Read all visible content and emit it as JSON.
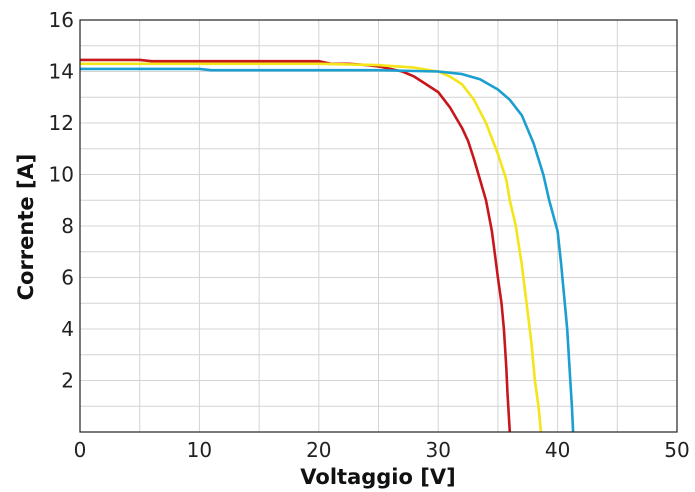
{
  "chart_data": {
    "type": "line",
    "title": "",
    "xlabel": "Voltaggio [V]",
    "ylabel": "Corrente [A]",
    "xlim": [
      0,
      50
    ],
    "ylim": [
      0,
      16
    ],
    "xticks": [
      0,
      10,
      20,
      30,
      40,
      50
    ],
    "yticks": [
      2,
      4,
      6,
      8,
      10,
      12,
      14,
      16
    ],
    "grid": true,
    "grid_minor": true,
    "legend": "none",
    "series": [
      {
        "color": "#c8161d",
        "points": [
          [
            0,
            14.45
          ],
          [
            5,
            14.45
          ],
          [
            6,
            14.4
          ],
          [
            15,
            14.4
          ],
          [
            20,
            14.4
          ],
          [
            21,
            14.3
          ],
          [
            22.5,
            14.3
          ],
          [
            24,
            14.25
          ],
          [
            25,
            14.2
          ],
          [
            26,
            14.1
          ],
          [
            27,
            14.0
          ],
          [
            28,
            13.8
          ],
          [
            29,
            13.5
          ],
          [
            30,
            13.2
          ],
          [
            31,
            12.6
          ],
          [
            32,
            11.8
          ],
          [
            32.5,
            11.3
          ],
          [
            33,
            10.6
          ],
          [
            33.5,
            9.8
          ],
          [
            34,
            9.0
          ],
          [
            34.5,
            7.8
          ],
          [
            35,
            6.0
          ],
          [
            35.3,
            5.0
          ],
          [
            35.5,
            4.0
          ],
          [
            35.7,
            2.5
          ],
          [
            35.8,
            1.5
          ],
          [
            36,
            0.0
          ]
        ]
      },
      {
        "color": "#f4e51a",
        "points": [
          [
            0,
            14.3
          ],
          [
            10,
            14.3
          ],
          [
            20,
            14.3
          ],
          [
            25,
            14.25
          ],
          [
            28,
            14.15
          ],
          [
            30,
            14.0
          ],
          [
            31,
            13.8
          ],
          [
            32,
            13.5
          ],
          [
            33,
            12.9
          ],
          [
            34,
            12.0
          ],
          [
            35,
            10.8
          ],
          [
            35.7,
            9.8
          ],
          [
            36,
            9.0
          ],
          [
            36.5,
            8.0
          ],
          [
            37,
            6.5
          ],
          [
            37.4,
            5.0
          ],
          [
            37.8,
            3.5
          ],
          [
            38.1,
            2.0
          ],
          [
            38.4,
            1.0
          ],
          [
            38.6,
            0.0
          ]
        ]
      },
      {
        "color": "#1a9fd0",
        "points": [
          [
            0,
            14.1
          ],
          [
            10,
            14.1
          ],
          [
            11,
            14.05
          ],
          [
            20,
            14.05
          ],
          [
            25,
            14.05
          ],
          [
            30,
            14.0
          ],
          [
            32,
            13.9
          ],
          [
            33.5,
            13.7
          ],
          [
            35,
            13.3
          ],
          [
            36,
            12.9
          ],
          [
            37,
            12.3
          ],
          [
            38,
            11.2
          ],
          [
            38.8,
            10.0
          ],
          [
            39.3,
            9.0
          ],
          [
            40,
            7.8
          ],
          [
            40.3,
            6.5
          ],
          [
            40.6,
            5.0
          ],
          [
            40.8,
            4.0
          ],
          [
            41,
            2.5
          ],
          [
            41.2,
            1.0
          ],
          [
            41.3,
            0.0
          ]
        ]
      }
    ]
  }
}
